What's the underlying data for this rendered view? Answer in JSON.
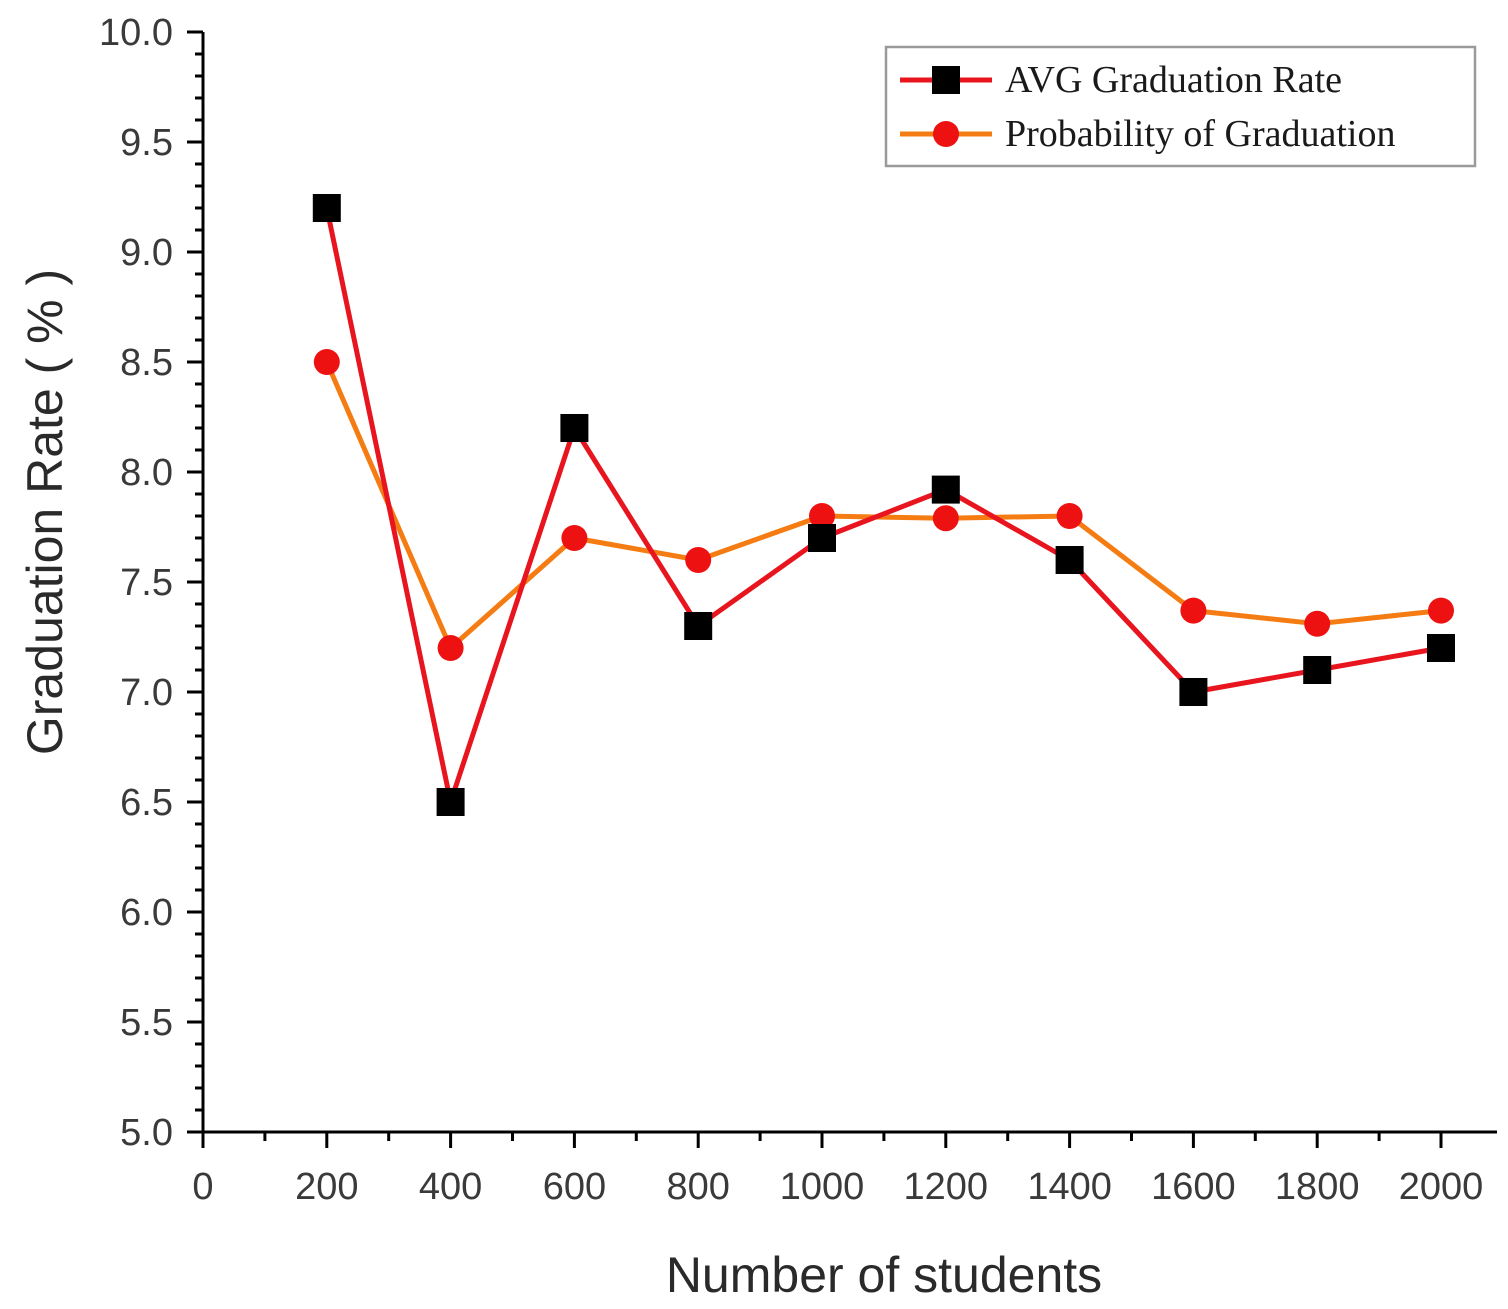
{
  "chart_data": {
    "type": "line",
    "xlabel": "Number of students",
    "ylabel": "Graduation Rate ( % )",
    "xlim": [
      0,
      2050
    ],
    "ylim": [
      5.0,
      10.0
    ],
    "x_ticks": [
      "0",
      "200",
      "400",
      "600",
      "800",
      "1000",
      "1200",
      "1400",
      "1600",
      "1800",
      "2000"
    ],
    "x_tick_values": [
      0,
      200,
      400,
      600,
      800,
      1000,
      1200,
      1400,
      1600,
      1800,
      2000
    ],
    "y_ticks": [
      "5.0",
      "5.5",
      "6.0",
      "6.5",
      "7.0",
      "7.5",
      "8.0",
      "8.5",
      "9.0",
      "9.5",
      "10.0"
    ],
    "y_tick_values": [
      5.0,
      5.5,
      6.0,
      6.5,
      7.0,
      7.5,
      8.0,
      8.5,
      9.0,
      9.5,
      10.0
    ],
    "x": [
      200,
      400,
      600,
      800,
      1000,
      1200,
      1400,
      1600,
      1800,
      2000
    ],
    "legend_position": "top-right",
    "series": [
      {
        "name": "AVG Graduation Rate",
        "values": [
          9.2,
          6.5,
          8.2,
          7.3,
          7.7,
          7.92,
          7.6,
          7.0,
          7.1,
          7.2
        ],
        "line_color": "#e8141e",
        "marker": "square",
        "marker_color": "#000000"
      },
      {
        "name": "Probability of Graduation",
        "values": [
          8.5,
          7.2,
          7.7,
          7.6,
          7.8,
          7.79,
          7.8,
          7.37,
          7.31,
          7.37
        ],
        "line_color": "#f57c12",
        "marker": "circle",
        "marker_color": "#ee1111"
      }
    ]
  }
}
